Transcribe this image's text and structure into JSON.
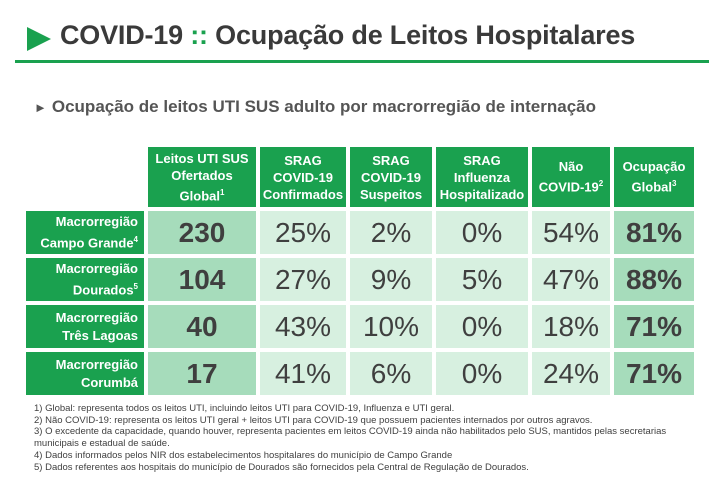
{
  "header": {
    "title_main": "COVID-19",
    "title_sep": "::",
    "title_rest": "Ocupação de Leitos Hospitalares"
  },
  "subtitle": "Ocupação de leitos UTI SUS adulto por macrorregião de internação",
  "table": {
    "columns": [
      {
        "lines": [
          "Leitos UTI SUS",
          "Ofertados",
          "Global"
        ],
        "sup": "1"
      },
      {
        "lines": [
          "SRAG",
          "COVID-19",
          "Confirmados"
        ],
        "sup": ""
      },
      {
        "lines": [
          "SRAG",
          "COVID-19",
          "Suspeitos"
        ],
        "sup": ""
      },
      {
        "lines": [
          "SRAG",
          "Influenza",
          "Hospitalizado"
        ],
        "sup": ""
      },
      {
        "lines": [
          "Não",
          "COVID-19"
        ],
        "sup": "2"
      },
      {
        "lines": [
          "Ocupação",
          "Global"
        ],
        "sup": "3"
      }
    ],
    "rows": [
      {
        "line1": "Macrorregião",
        "line2": "Campo Grande",
        "sup": "4",
        "values": [
          "230",
          "25%",
          "2%",
          "0%",
          "54%",
          "81%"
        ]
      },
      {
        "line1": "Macrorregião",
        "line2": "Dourados",
        "sup": "5",
        "values": [
          "104",
          "27%",
          "9%",
          "5%",
          "47%",
          "88%"
        ]
      },
      {
        "line1": "Macrorregião",
        "line2": "Três Lagoas",
        "sup": "",
        "values": [
          "40",
          "43%",
          "10%",
          "0%",
          "18%",
          "71%"
        ]
      },
      {
        "line1": "Macrorregião",
        "line2": "Corumbá",
        "sup": "",
        "values": [
          "17",
          "41%",
          "6%",
          "0%",
          "24%",
          "71%"
        ]
      }
    ]
  },
  "notes": [
    "1) Global: representa todos os leitos UTI, incluindo leitos UTI para COVID-19, Influenza e UTI geral.",
    "2) Não COVID-19: representa os leitos UTI geral + leitos UTI para COVID-19 que possuem pacientes internados por outros agravos.",
    "3) O excedente da capacidade, quando houver, representa pacientes em leitos COVID-19 ainda não habilitados pelo SUS, mantidos pelas secretarias municipais e estadual de saúde.",
    "4) Dados informados pelos NIR dos estabelecimentos hospitalares do município de Campo Grande",
    "5) Dados referentes aos hospitais do município de Dourados são fornecidos pela Central de Regulação de Dourados."
  ],
  "colors": {
    "brand_green": "#1aa14f",
    "cell_dark": "#a6dcbb",
    "cell_light": "#d7f0e0"
  }
}
